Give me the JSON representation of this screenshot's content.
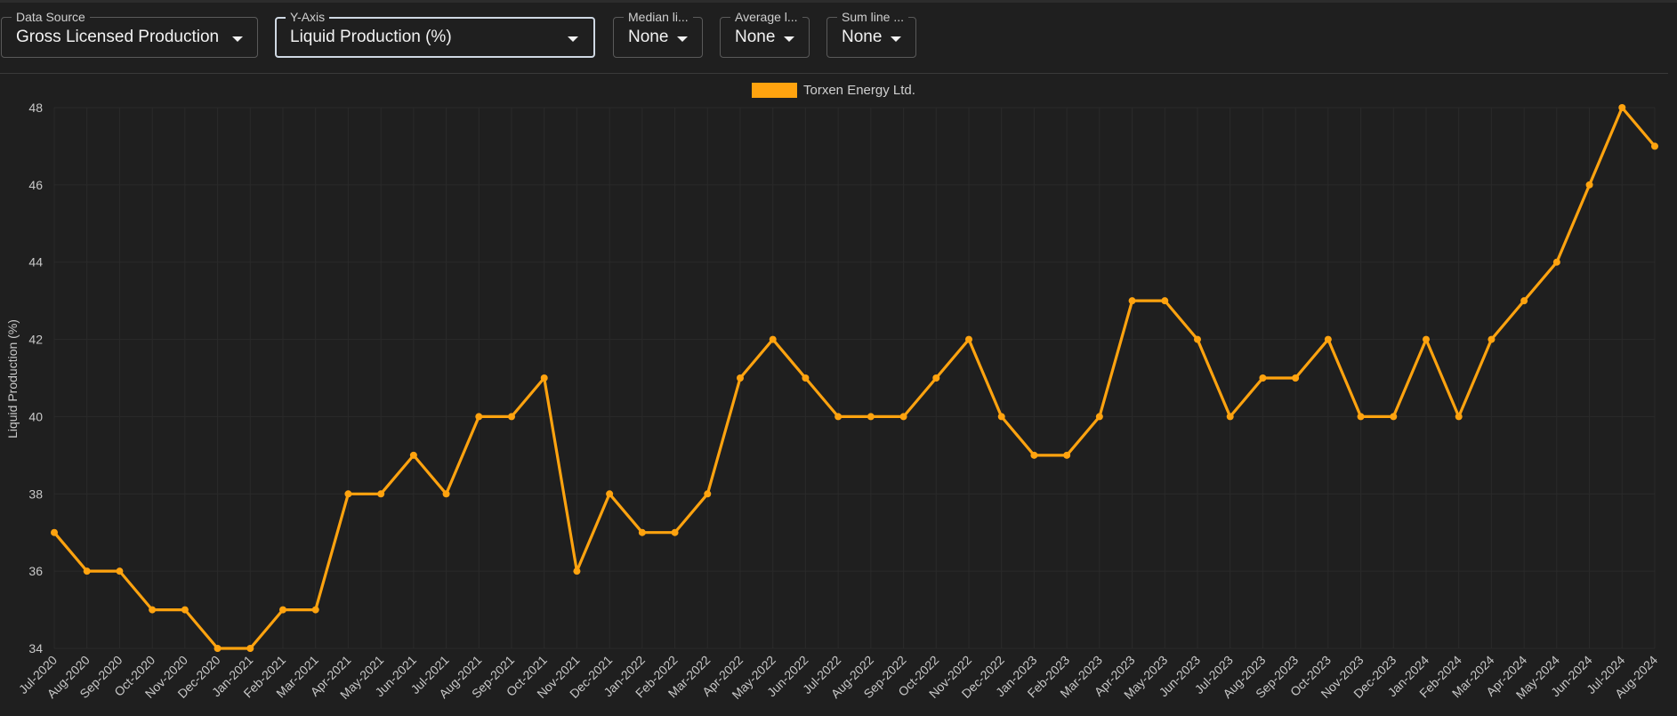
{
  "filters": {
    "data_source": {
      "label": "Data Source",
      "value": "Gross Licensed Production"
    },
    "y_axis": {
      "label": "Y-Axis",
      "value": "Liquid Production (%)"
    },
    "median_line": {
      "label": "Median li...",
      "value": "None"
    },
    "average_line": {
      "label": "Average l...",
      "value": "None"
    },
    "sum_line": {
      "label": "Sum line ...",
      "value": "None"
    }
  },
  "chart_data": {
    "type": "line",
    "ylabel": "Liquid Production (%)",
    "ylim": [
      34,
      48
    ],
    "yticks": [
      34,
      36,
      38,
      40,
      42,
      44,
      46,
      48
    ],
    "grid": true,
    "legend_position": "top-center",
    "categories": [
      "Jul-2020",
      "Aug-2020",
      "Sep-2020",
      "Oct-2020",
      "Nov-2020",
      "Dec-2020",
      "Jan-2021",
      "Feb-2021",
      "Mar-2021",
      "Apr-2021",
      "May-2021",
      "Jun-2021",
      "Jul-2021",
      "Aug-2021",
      "Sep-2021",
      "Oct-2021",
      "Nov-2021",
      "Dec-2021",
      "Jan-2022",
      "Feb-2022",
      "Mar-2022",
      "Apr-2022",
      "May-2022",
      "Jun-2022",
      "Jul-2022",
      "Aug-2022",
      "Sep-2022",
      "Oct-2022",
      "Nov-2022",
      "Dec-2022",
      "Jan-2023",
      "Feb-2023",
      "Mar-2023",
      "Apr-2023",
      "May-2023",
      "Jun-2023",
      "Jul-2023",
      "Aug-2023",
      "Sep-2023",
      "Oct-2023",
      "Nov-2023",
      "Dec-2023",
      "Jan-2024",
      "Feb-2024",
      "Mar-2024",
      "Apr-2024",
      "May-2024",
      "Jun-2024",
      "Jul-2024",
      "Aug-2024"
    ],
    "series": [
      {
        "name": "Torxen Energy Ltd.",
        "color": "#ffa30f",
        "values": [
          37,
          36,
          36,
          35,
          35,
          34,
          34,
          35,
          35,
          38,
          38,
          39,
          38,
          40,
          40,
          41,
          36,
          38,
          37,
          37,
          38,
          41,
          42,
          41,
          40,
          40,
          40,
          41,
          42,
          40,
          39,
          39,
          40,
          43,
          43,
          42,
          40,
          41,
          41,
          42,
          40,
          40,
          42,
          40,
          42,
          43,
          44,
          46,
          48,
          47
        ]
      }
    ]
  },
  "colors": {
    "background": "#1f1f1f",
    "grid": "#2a2a2a",
    "series": "#ffa30f"
  }
}
